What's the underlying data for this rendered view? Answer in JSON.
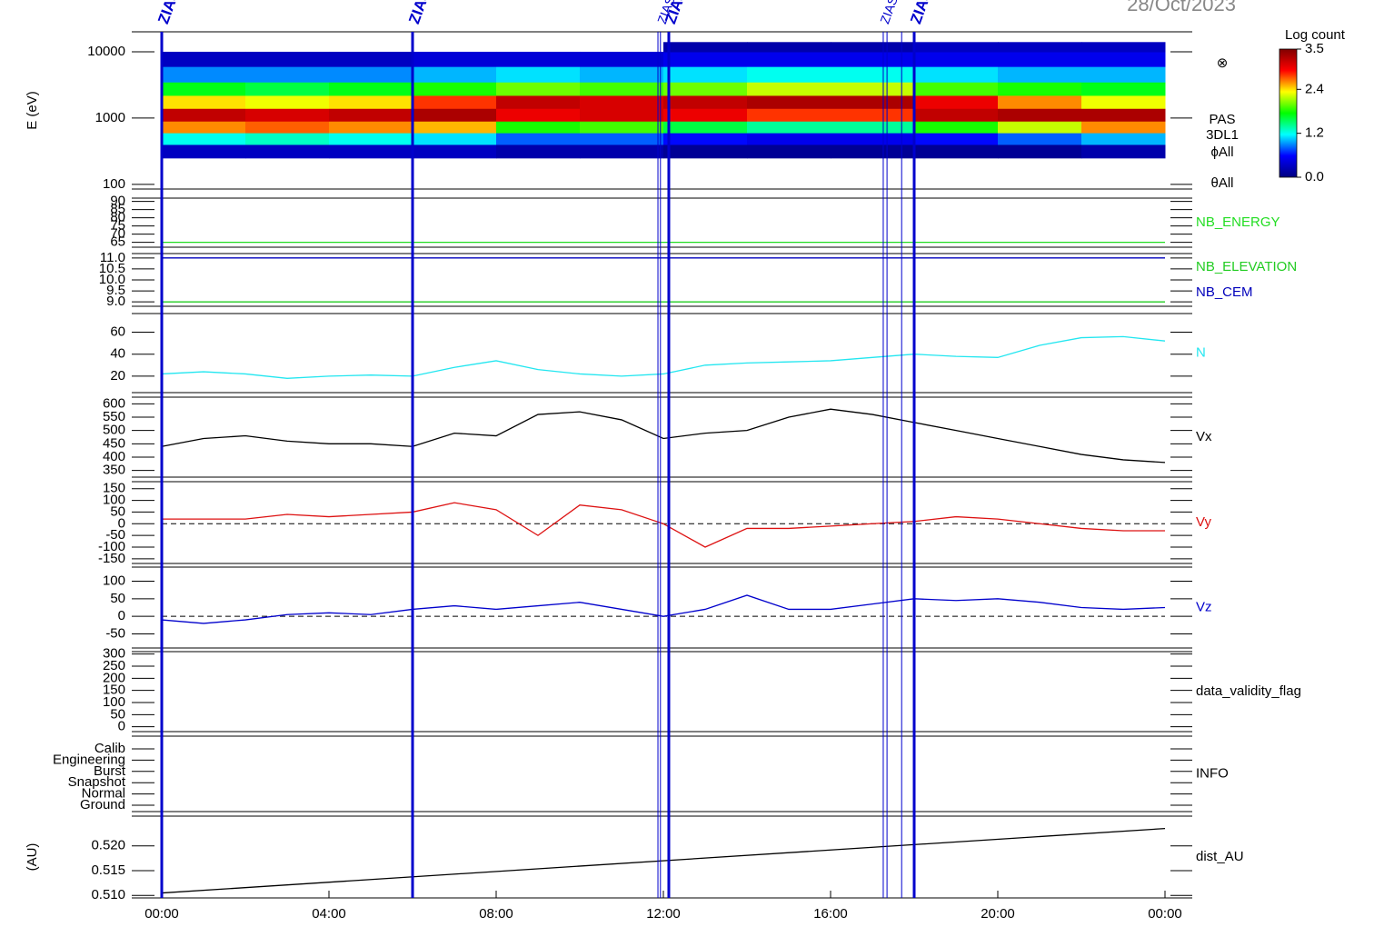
{
  "date": "28/Oct/2023",
  "markers": [
    {
      "x": 0,
      "label": "ZIAS",
      "bold": true
    },
    {
      "x": 6,
      "label": "ZIAS",
      "bold": true
    },
    {
      "x": 11.87
    },
    {
      "x": 11.93,
      "label": "ZIAS"
    },
    {
      "x": 12.13,
      "label": "ZIAS",
      "bold": true
    },
    {
      "x": 17.26,
      "label": "ZIAS"
    },
    {
      "x": 17.35
    },
    {
      "x": 17.7
    },
    {
      "x": 18,
      "label": "ZIAS",
      "bold": true
    }
  ],
  "chart_data": [
    {
      "type": "heatmap",
      "ylabel": "E (eV)",
      "log": true,
      "ylim": [
        85,
        20000
      ],
      "yticks": [
        100,
        1000,
        10000
      ],
      "x_edges": [
        0,
        2,
        4,
        6,
        8,
        10,
        12,
        14,
        16,
        18,
        20,
        22,
        24
      ],
      "y_edges": [
        250,
        400,
        600,
        900,
        1400,
        2200,
        3500,
        6000,
        10000,
        14000
      ],
      "z": [
        [
          0.3,
          1.2,
          2.6,
          3.2,
          2.4,
          1.7,
          0.9,
          0.3,
          null
        ],
        [
          0.3,
          1.3,
          2.7,
          3.1,
          2.3,
          1.6,
          0.9,
          0.3,
          null
        ],
        [
          0.3,
          1.2,
          2.6,
          3.2,
          2.4,
          1.7,
          0.9,
          0.3,
          null
        ],
        [
          0.3,
          1.1,
          2.5,
          3.3,
          2.8,
          1.8,
          1.0,
          0.4,
          null
        ],
        [
          0.2,
          0.8,
          1.8,
          3.0,
          3.2,
          2.0,
          1.1,
          0.4,
          null
        ],
        [
          0.2,
          0.8,
          1.9,
          3.1,
          3.1,
          1.9,
          1.0,
          0.4,
          null
        ],
        [
          0.1,
          0.6,
          1.6,
          3.0,
          3.2,
          2.0,
          1.1,
          0.5,
          0.2
        ],
        [
          0.1,
          0.5,
          1.4,
          2.8,
          3.3,
          2.2,
          1.2,
          0.5,
          0.2
        ],
        [
          0.1,
          0.5,
          1.4,
          2.8,
          3.3,
          2.2,
          1.2,
          0.5,
          0.2
        ],
        [
          0.1,
          0.6,
          1.8,
          3.2,
          3.0,
          1.9,
          1.1,
          0.5,
          0.3
        ],
        [
          0.1,
          0.8,
          2.2,
          3.3,
          2.6,
          1.8,
          1.0,
          0.5,
          0.3
        ],
        [
          0.2,
          1.0,
          2.6,
          3.3,
          2.3,
          1.7,
          1.0,
          0.5,
          0.3
        ]
      ],
      "clim": [
        0,
        3.5
      ],
      "cticks": [
        {
          "value": 0,
          "label": "0.0"
        },
        1.2,
        2.4,
        3.5
      ],
      "clabel": "Log count",
      "colormap": [
        "#00007f",
        "#0000ff",
        "#00ffff",
        "#00ff00",
        "#ffff00",
        "#ff0000",
        "#7f0000"
      ],
      "annotations": [
        "⊗",
        "PAS",
        "3DL1",
        "ϕAll",
        "θAll"
      ]
    },
    {
      "type": "line",
      "ylim": [
        62,
        92
      ],
      "yticks": [
        65,
        70,
        75,
        80,
        85,
        90
      ],
      "x": [
        0,
        24
      ],
      "series": [
        {
          "name": "NB_ENERGY",
          "color": "#22dd22",
          "values": [
            65,
            65
          ]
        }
      ]
    },
    {
      "type": "line",
      "ylim": [
        8.8,
        11.2
      ],
      "yticks": [
        {
          "value": 9,
          "label": "9.0"
        },
        9.5,
        {
          "value": 10,
          "label": "10.0"
        },
        10.5,
        {
          "value": 11,
          "label": "11.0"
        }
      ],
      "x": [
        0,
        24
      ],
      "series": [
        {
          "name": "NB_ELEVATION",
          "color": "#22cc22",
          "values": [
            9,
            9
          ]
        },
        {
          "name": "NB_CEM",
          "color": "#0000bb",
          "values": [
            11,
            11
          ]
        }
      ]
    },
    {
      "type": "line",
      "ylim": [
        5,
        77
      ],
      "yticks": [
        20,
        40,
        60
      ],
      "x": [
        0,
        1,
        2,
        3,
        4,
        5,
        6,
        7,
        8,
        9,
        10,
        11,
        12,
        13,
        14,
        15,
        16,
        17,
        18,
        19,
        20,
        21,
        22,
        23,
        24
      ],
      "series": [
        {
          "name": "N",
          "color": "#22e6f0",
          "values": [
            22,
            24,
            22,
            18,
            20,
            21,
            20,
            28,
            34,
            26,
            22,
            20,
            22,
            30,
            32,
            33,
            34,
            37,
            40,
            38,
            37,
            48,
            55,
            56,
            52
          ]
        }
      ]
    },
    {
      "type": "line",
      "ylim": [
        325,
        625
      ],
      "yticks": [
        350,
        400,
        450,
        500,
        550,
        600
      ],
      "x": [
        0,
        1,
        2,
        3,
        4,
        5,
        6,
        7,
        8,
        9,
        10,
        11,
        12,
        13,
        14,
        15,
        16,
        17,
        18,
        19,
        20,
        21,
        22,
        23,
        24
      ],
      "series": [
        {
          "name": "Vx",
          "color": "#000000",
          "values": [
            440,
            470,
            480,
            460,
            450,
            450,
            440,
            490,
            480,
            560,
            570,
            540,
            470,
            490,
            500,
            550,
            580,
            560,
            530,
            500,
            470,
            440,
            410,
            390,
            380
          ]
        }
      ]
    },
    {
      "type": "line",
      "ylim": [
        -170,
        180
      ],
      "yticks": [
        -150,
        -100,
        -50,
        0,
        50,
        100,
        150
      ],
      "zero_line": true,
      "x": [
        0,
        1,
        2,
        3,
        4,
        5,
        6,
        7,
        8,
        9,
        10,
        11,
        12,
        13,
        14,
        15,
        16,
        17,
        18,
        19,
        20,
        21,
        22,
        23,
        24
      ],
      "series": [
        {
          "name": "Vy",
          "color": "#dd1111",
          "values": [
            20,
            20,
            20,
            40,
            30,
            40,
            50,
            90,
            60,
            -50,
            80,
            60,
            0,
            -100,
            -20,
            -20,
            -10,
            0,
            10,
            30,
            20,
            0,
            -20,
            -30,
            -30
          ]
        }
      ]
    },
    {
      "type": "line",
      "ylim": [
        -90,
        140
      ],
      "yticks": [
        -50,
        0,
        50,
        100
      ],
      "zero_line": true,
      "x": [
        0,
        1,
        2,
        3,
        4,
        5,
        6,
        7,
        8,
        9,
        10,
        11,
        12,
        13,
        14,
        15,
        16,
        17,
        18,
        19,
        20,
        21,
        22,
        23,
        24
      ],
      "series": [
        {
          "name": "Vz",
          "color": "#0000cc",
          "values": [
            -10,
            -20,
            -10,
            5,
            10,
            5,
            20,
            30,
            20,
            30,
            40,
            20,
            0,
            20,
            60,
            20,
            20,
            35,
            50,
            45,
            50,
            40,
            25,
            20,
            25
          ]
        }
      ]
    },
    {
      "type": "line",
      "ylim": [
        -20,
        310
      ],
      "yticks": [
        0,
        50,
        100,
        150,
        200,
        250,
        300
      ],
      "x": [],
      "series": [
        {
          "name": "data_validity_flag",
          "color": "#000000",
          "values": []
        }
      ]
    },
    {
      "type": "category",
      "label": "INFO",
      "categories": [
        "Calib",
        "Engineering",
        "Burst",
        "Snapshot",
        "Normal",
        "Ground"
      ]
    },
    {
      "type": "line",
      "ylabel": "(AU)",
      "ylim": [
        0.5095,
        0.526
      ],
      "yticks": [
        {
          "value": 0.51,
          "label": "0.510"
        },
        0.515,
        {
          "value": 0.52,
          "label": "0.520"
        }
      ],
      "x": [
        0,
        24
      ],
      "series": [
        {
          "name": "dist_AU",
          "color": "#000000",
          "values": [
            0.5105,
            0.5235
          ]
        }
      ],
      "xlim": [
        0,
        24
      ],
      "xticks": [
        {
          "value": 0,
          "label": "00:00"
        },
        {
          "value": 4,
          "label": "04:00"
        },
        {
          "value": 8,
          "label": "08:00"
        },
        {
          "value": 12,
          "label": "12:00"
        },
        {
          "value": 16,
          "label": "16:00"
        },
        {
          "value": 20,
          "label": "20:00"
        },
        {
          "value": 24,
          "label": "00:00"
        }
      ]
    }
  ]
}
